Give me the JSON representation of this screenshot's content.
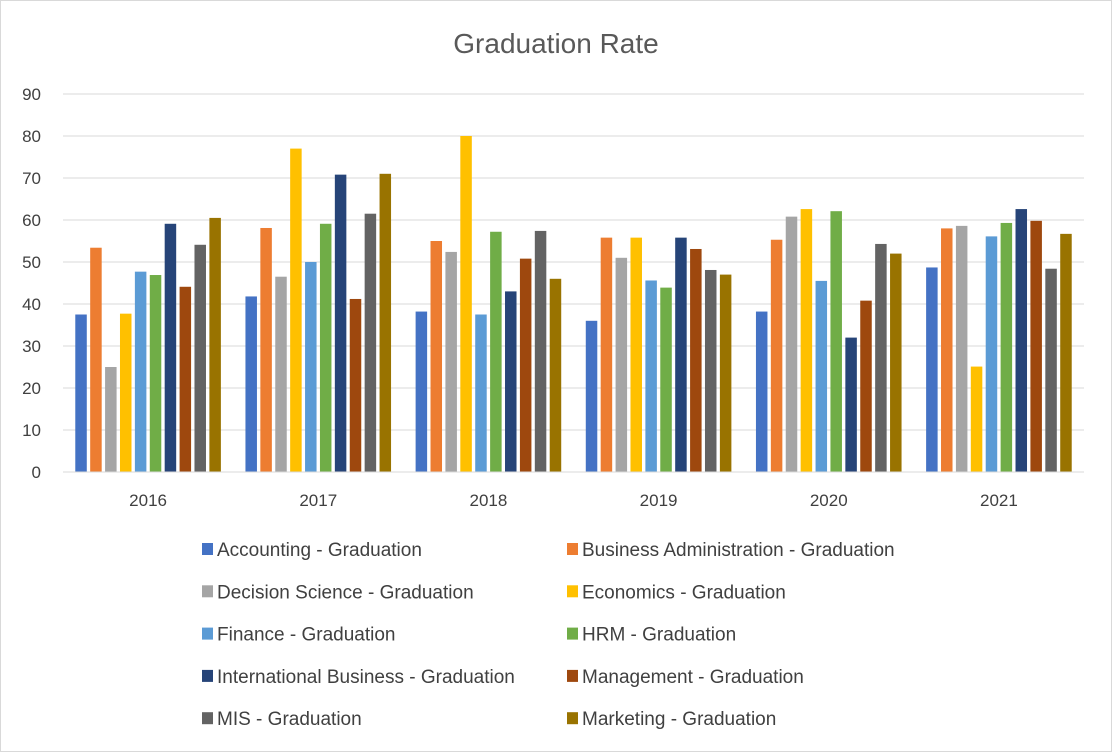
{
  "chart_data": {
    "type": "bar",
    "title": "Graduation Rate",
    "xlabel": "",
    "ylabel": "",
    "ylim": [
      0,
      90
    ],
    "yticks": [
      0,
      10,
      20,
      30,
      40,
      50,
      60,
      70,
      80,
      90
    ],
    "grid": true,
    "legend_position": "bottom",
    "categories": [
      "2016",
      "2017",
      "2018",
      "2019",
      "2020",
      "2021"
    ],
    "series": [
      {
        "name": "Accounting - Graduation",
        "color": "#4472C4",
        "values": [
          37.5,
          41.8,
          38.2,
          36.0,
          38.2,
          48.7
        ]
      },
      {
        "name": "Business Administration - Graduation",
        "color": "#ED7D31",
        "values": [
          53.4,
          58.1,
          55.0,
          55.8,
          55.3,
          58.0
        ]
      },
      {
        "name": "Decision Science - Graduation",
        "color": "#A5A5A5",
        "values": [
          25.0,
          46.5,
          52.4,
          51.0,
          60.8,
          58.6
        ]
      },
      {
        "name": "Economics - Graduation",
        "color": "#FFC000",
        "values": [
          37.7,
          77.0,
          80.0,
          55.8,
          62.6,
          25.1
        ]
      },
      {
        "name": "Finance - Graduation",
        "color": "#5B9BD5",
        "values": [
          47.7,
          50.0,
          37.5,
          45.6,
          45.5,
          56.1
        ]
      },
      {
        "name": "HRM - Graduation",
        "color": "#70AD47",
        "values": [
          46.9,
          59.1,
          57.2,
          43.9,
          62.1,
          59.3
        ]
      },
      {
        "name": "International Business - Graduation",
        "color": "#264478",
        "values": [
          59.1,
          70.8,
          43.0,
          55.8,
          32.0,
          62.6
        ]
      },
      {
        "name": "Management - Graduation",
        "color": "#9E480E",
        "values": [
          44.1,
          41.2,
          50.8,
          53.1,
          40.8,
          59.8
        ]
      },
      {
        "name": "MIS - Graduation",
        "color": "#636363",
        "values": [
          54.1,
          61.5,
          57.4,
          48.1,
          54.3,
          48.4
        ]
      },
      {
        "name": "Marketing - Graduation",
        "color": "#997300",
        "values": [
          60.5,
          71.0,
          46.0,
          47.0,
          52.0,
          56.7
        ]
      }
    ]
  }
}
